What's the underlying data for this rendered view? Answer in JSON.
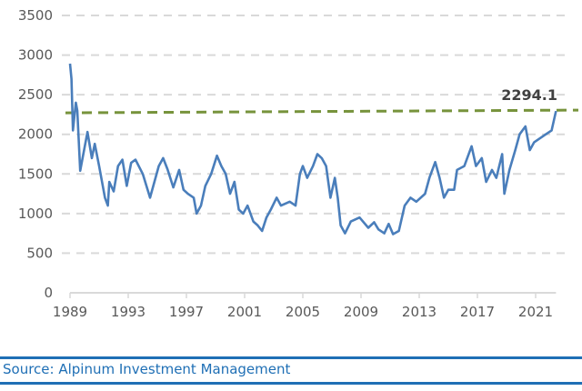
{
  "chart_data": {
    "type": "line",
    "title": "",
    "xlabel": "",
    "ylabel": "",
    "xlim": [
      1989,
      2022.4
    ],
    "ylim": [
      0,
      3500
    ],
    "x_ticks": [
      "1989",
      "1993",
      "1997",
      "2001",
      "2005",
      "2009",
      "2013",
      "2017",
      "2021"
    ],
    "y_ticks": [
      "0",
      "500",
      "1000",
      "1500",
      "2000",
      "2500",
      "3000",
      "3500"
    ],
    "grid": "horizontal dashed",
    "legend": "none",
    "colors": {
      "series": "#4a7ebb",
      "reference": "#77933c",
      "grid": "#d9d9d9",
      "source": "#1f6fb5"
    },
    "reference_line": {
      "value": 2294.1,
      "label": "2294.1"
    },
    "series": [
      {
        "x": [
          1989.0,
          1989.1,
          1989.2,
          1989.4,
          1989.5,
          1989.7,
          1990.2,
          1990.5,
          1990.7,
          1991.0,
          1991.4,
          1991.6,
          1991.7,
          1992.0,
          1992.3,
          1992.6,
          1992.9,
          1993.2,
          1993.5,
          1994.0,
          1994.5,
          1994.8,
          1995.1,
          1995.4,
          1995.7,
          1996.1,
          1996.5,
          1996.8,
          1997.1,
          1997.5,
          1997.7,
          1998.0,
          1998.3,
          1998.7,
          1999.1,
          1999.4,
          1999.7,
          2000.0,
          2000.3,
          2000.6,
          2000.9,
          2001.2,
          2001.6,
          2001.9,
          2002.2,
          2002.5,
          2002.8,
          2003.2,
          2003.5,
          2004.1,
          2004.5,
          2004.8,
          2005.0,
          2005.3,
          2005.7,
          2006.0,
          2006.3,
          2006.6,
          2006.9,
          2007.2,
          2007.4,
          2007.6,
          2007.9,
          2008.3,
          2008.9,
          2009.5,
          2009.9,
          2010.2,
          2010.6,
          2010.9,
          2011.2,
          2011.6,
          2012.0,
          2012.4,
          2012.8,
          2013.4,
          2013.7,
          2014.1,
          2014.4,
          2014.7,
          2015.0,
          2015.4,
          2015.6,
          2016.1,
          2016.6,
          2016.9,
          2017.3,
          2017.6,
          2018.0,
          2018.3,
          2018.7,
          2018.85,
          2019.2,
          2019.6,
          2019.9,
          2020.3,
          2020.6,
          2020.9,
          2021.3,
          2021.7,
          2022.1,
          2022.4
        ],
        "values": [
          2892,
          2700,
          2050,
          2400,
          2300,
          1540,
          2030,
          1700,
          1880,
          1600,
          1200,
          1100,
          1400,
          1280,
          1600,
          1680,
          1350,
          1640,
          1680,
          1500,
          1200,
          1400,
          1600,
          1700,
          1560,
          1330,
          1550,
          1300,
          1250,
          1200,
          1000,
          1100,
          1350,
          1500,
          1730,
          1600,
          1500,
          1250,
          1400,
          1050,
          1000,
          1100,
          900,
          850,
          780,
          950,
          1050,
          1200,
          1100,
          1150,
          1100,
          1500,
          1600,
          1450,
          1600,
          1750,
          1700,
          1600,
          1200,
          1450,
          1200,
          850,
          750,
          900,
          950,
          820,
          890,
          800,
          750,
          870,
          740,
          780,
          1100,
          1200,
          1150,
          1250,
          1450,
          1650,
          1450,
          1200,
          1300,
          1300,
          1550,
          1600,
          1850,
          1600,
          1700,
          1400,
          1550,
          1450,
          1750,
          1250,
          1550,
          1800,
          2000,
          2100,
          1800,
          1900,
          1950,
          2000,
          2050,
          2294.1
        ]
      }
    ]
  },
  "footer": {
    "source": "Source: Alpinum Investment Management"
  }
}
